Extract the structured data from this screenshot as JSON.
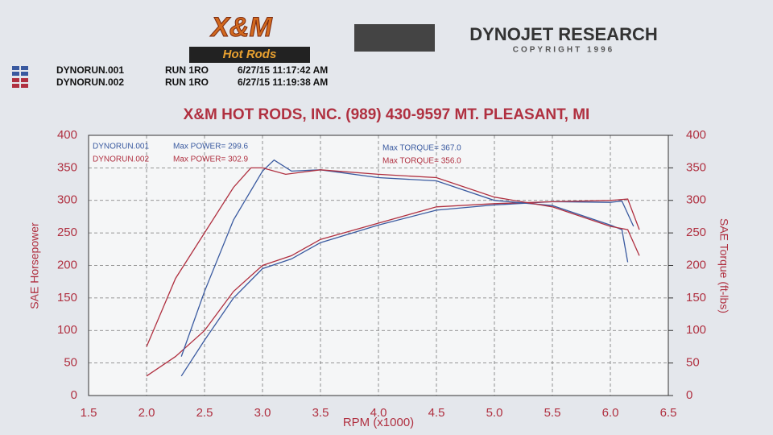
{
  "header": {
    "logo_left": "X&M",
    "logo_left_sub": "Hot Rods",
    "logo_right": "DYNOJET RESEARCH",
    "logo_right_sub": "COPYRIGHT 1996"
  },
  "runs": [
    {
      "name": "DYNORUN.001",
      "run": "RUN 1RO",
      "datetime": "6/27/15 11:17:42 AM",
      "color": "#3a5aa0"
    },
    {
      "name": "DYNORUN.002",
      "run": "RUN 1RO",
      "datetime": "6/27/15 11:19:38 AM",
      "color": "#b03040"
    }
  ],
  "chart_data": {
    "type": "line",
    "title": "X&M HOT RODS, INC. (989) 430-9597 MT. PLEASANT, MI",
    "xlabel": "RPM (x1000)",
    "ylabel": "SAE Horsepower",
    "y2label": "SAE Torque (ft-lbs)",
    "annotations": [
      "DYNORUN.001",
      "Max POWER= 299.6",
      "Max TORQUE= 367.0",
      "DYNORUN.002",
      "Max POWER= 302.9",
      "Max TORQUE= 356.0"
    ],
    "xlim": [
      1.5,
      6.5
    ],
    "xticks": [
      1.5,
      {
        "value": 2,
        "label": "2.0"
      },
      2.5,
      {
        "value": 3,
        "label": "3.0"
      },
      3.5,
      {
        "value": 4,
        "label": "4.0"
      },
      4.5,
      {
        "value": 5,
        "label": "5.0"
      },
      5.5,
      {
        "value": 6,
        "label": "6.0"
      },
      6.5
    ],
    "ylim": [
      0,
      400
    ],
    "yticks": [
      0,
      50,
      100,
      150,
      200,
      250,
      300,
      350,
      400
    ],
    "y2lim": [
      0,
      400
    ],
    "y2ticks": [
      0,
      50,
      100,
      150,
      200,
      250,
      300,
      350,
      400
    ],
    "grid": true,
    "series": [
      {
        "color": "#3a5aa0",
        "x": [
          2.3,
          2.5,
          2.75,
          3.0,
          3.25,
          3.5,
          4.0,
          4.5,
          5.0,
          5.5,
          6.0,
          6.1,
          6.2
        ],
        "values": [
          30,
          85,
          150,
          195,
          210,
          235,
          262,
          285,
          293,
          298,
          297,
          299,
          260
        ]
      },
      {
        "color": "#b03040",
        "x": [
          2.0,
          2.25,
          2.5,
          2.75,
          3.0,
          3.25,
          3.5,
          4.0,
          4.5,
          5.0,
          5.5,
          6.0,
          6.15,
          6.25
        ],
        "values": [
          30,
          60,
          100,
          160,
          200,
          215,
          240,
          265,
          290,
          295,
          298,
          300,
          302,
          255
        ]
      },
      {
        "color": "#3a5aa0",
        "axis": "y2",
        "x": [
          2.3,
          2.5,
          2.75,
          3.0,
          3.1,
          3.25,
          3.5,
          4.0,
          4.5,
          5.0,
          5.5,
          6.0,
          6.1,
          6.15
        ],
        "values": [
          60,
          160,
          270,
          345,
          362,
          345,
          347,
          335,
          330,
          300,
          292,
          262,
          255,
          205
        ]
      },
      {
        "color": "#b03040",
        "axis": "y2",
        "x": [
          2.0,
          2.25,
          2.5,
          2.75,
          2.9,
          3.0,
          3.2,
          3.5,
          4.0,
          4.5,
          5.0,
          5.5,
          6.0,
          6.15,
          6.25
        ],
        "values": [
          75,
          180,
          250,
          320,
          350,
          350,
          340,
          347,
          340,
          335,
          305,
          290,
          260,
          255,
          215
        ]
      }
    ]
  }
}
